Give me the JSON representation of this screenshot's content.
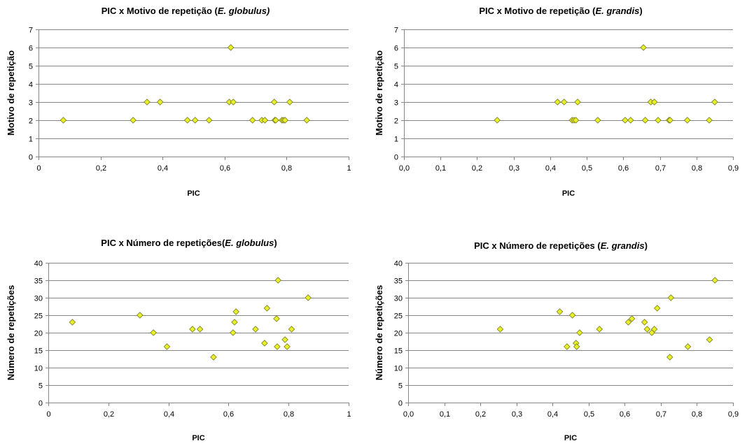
{
  "chart_data": [
    {
      "type": "scatter",
      "title_parts": [
        {
          "text": "PIC x Motivo de repetição (",
          "italic": false
        },
        {
          "text": "E. globulus)",
          "italic": true
        }
      ],
      "xlabel": "PIC",
      "ylabel": "Motivo de repetição",
      "xlim": [
        0,
        1
      ],
      "ylim": [
        0,
        7
      ],
      "xticks": [
        "0",
        "0,2",
        "0,4",
        "0,6",
        "0,8",
        "1"
      ],
      "yticks": [
        "0",
        "1",
        "2",
        "3",
        "4",
        "5",
        "6",
        "7"
      ],
      "grid": true,
      "marker_color": "#e6f02a",
      "x": [
        0.08,
        0.305,
        0.35,
        0.392,
        0.48,
        0.505,
        0.55,
        0.615,
        0.62,
        0.628,
        0.69,
        0.72,
        0.73,
        0.76,
        0.762,
        0.765,
        0.785,
        0.79,
        0.795,
        0.81,
        0.865
      ],
      "y": [
        2,
        2,
        3,
        3,
        2,
        2,
        2,
        3,
        6,
        3,
        2,
        2,
        2,
        3,
        2,
        2,
        2,
        2,
        2,
        3,
        2
      ]
    },
    {
      "type": "scatter",
      "title_parts": [
        {
          "text": "PIC x Motivo de repetição (",
          "italic": false
        },
        {
          "text": "E. grandis",
          "italic": true
        },
        {
          "text": ")",
          "italic": false
        }
      ],
      "xlabel": "PIC",
      "ylabel": "Motivo de repetição",
      "xlim": [
        0,
        0.9
      ],
      "ylim": [
        0,
        7
      ],
      "xticks": [
        "0,0",
        "0,1",
        "0,2",
        "0,3",
        "0,4",
        "0,5",
        "0,6",
        "0,7",
        "0,8",
        "0,9"
      ],
      "yticks": [
        "0",
        "1",
        "2",
        "3",
        "4",
        "5",
        "6",
        "7"
      ],
      "grid": true,
      "marker_color": "#e6f02a",
      "x": [
        0.255,
        0.42,
        0.438,
        0.46,
        0.465,
        0.47,
        0.475,
        0.53,
        0.605,
        0.62,
        0.655,
        0.66,
        0.675,
        0.685,
        0.695,
        0.725,
        0.728,
        0.775,
        0.835,
        0.85
      ],
      "y": [
        2,
        3,
        3,
        2,
        2,
        2,
        3,
        2,
        2,
        2,
        6,
        2,
        3,
        3,
        2,
        2,
        2,
        2,
        2,
        3
      ]
    },
    {
      "type": "scatter",
      "title_parts": [
        {
          "text": "PIC x Número de repetições(",
          "italic": false
        },
        {
          "text": "E. globulus",
          "italic": true
        },
        {
          "text": ")",
          "italic": false
        }
      ],
      "xlabel": "PIC",
      "ylabel": "Número de repetições",
      "xlim": [
        0,
        1
      ],
      "ylim": [
        0,
        40
      ],
      "xticks": [
        "0",
        "0,2",
        "0,4",
        "0,6",
        "0,8",
        "1"
      ],
      "yticks": [
        "0",
        "5",
        "10",
        "15",
        "20",
        "25",
        "30",
        "35",
        "40"
      ],
      "grid": true,
      "marker_color": "#e6f02a",
      "x": [
        0.08,
        0.305,
        0.35,
        0.395,
        0.48,
        0.505,
        0.55,
        0.615,
        0.62,
        0.625,
        0.69,
        0.72,
        0.728,
        0.76,
        0.762,
        0.765,
        0.788,
        0.795,
        0.81,
        0.865
      ],
      "y": [
        23,
        25,
        20,
        16,
        21,
        21,
        13,
        20,
        23,
        26,
        21,
        17,
        27,
        24,
        16,
        35,
        18,
        16,
        21,
        30
      ]
    },
    {
      "type": "scatter",
      "title_parts": [
        {
          "text": "PIC x Número de repetições (",
          "italic": false
        },
        {
          "text": "E. grandis",
          "italic": true
        },
        {
          "text": ")",
          "italic": false
        }
      ],
      "xlabel": "PIC",
      "ylabel": "Número de repetições",
      "xlim": [
        0,
        0.9
      ],
      "ylim": [
        0,
        40
      ],
      "xticks": [
        "0,0",
        "0,1",
        "0,2",
        "0,3",
        "0,4",
        "0,5",
        "0,6",
        "0,7",
        "0,8",
        "0,9"
      ],
      "yticks": [
        "0",
        "5",
        "10",
        "15",
        "20",
        "25",
        "30",
        "35",
        "40"
      ],
      "grid": true,
      "marker_color": "#e6f02a",
      "x": [
        0.255,
        0.42,
        0.44,
        0.455,
        0.465,
        0.467,
        0.475,
        0.53,
        0.61,
        0.62,
        0.655,
        0.662,
        0.675,
        0.682,
        0.69,
        0.725,
        0.728,
        0.775,
        0.835,
        0.85
      ],
      "y": [
        21,
        26,
        16,
        25,
        17,
        16,
        20,
        21,
        23,
        24,
        23,
        21,
        20,
        21,
        27,
        13,
        30,
        16,
        18,
        35
      ]
    }
  ]
}
